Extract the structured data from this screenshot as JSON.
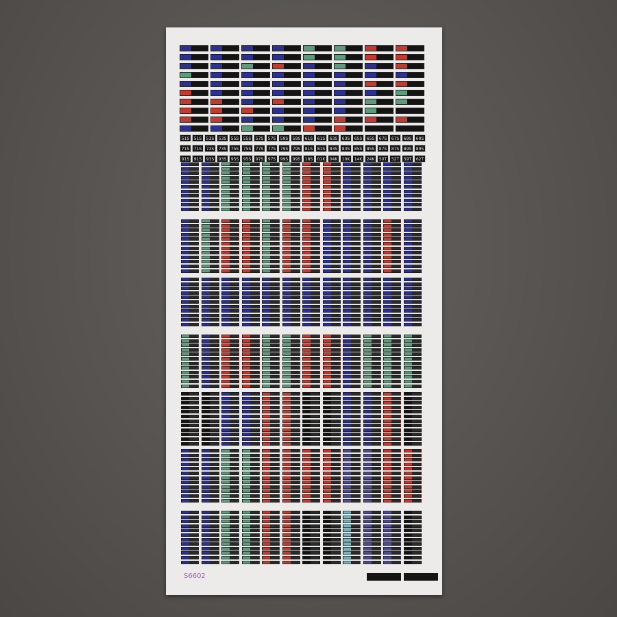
{
  "product_code": "S6602",
  "colors": {
    "B": "#2c318f",
    "G": "#5e9a7c",
    "R": "#c23b2e",
    "K": "#141414",
    "T": "#6fb6c2",
    "P": "#4d4a96",
    "O": "#b8563a",
    "V": "#6b5aa0"
  },
  "top_grid": [
    "BBBBGGRR",
    "BBBBGGRR",
    "BBGRBGBR",
    "GBBBBBBB",
    "BBBBBBRR",
    "RBBBBBBG",
    "RRBRBBGG",
    "RRRBBBGK",
    "RRBBBRRR",
    "BBGGRRKK"
  ],
  "number_rows": [
    [
      "51S",
      "51S",
      "53S",
      "53S",
      "55S",
      "55S",
      "57S",
      "57S",
      "59S",
      "59S",
      "61S",
      "61S",
      "63S",
      "63S",
      "65S",
      "65S",
      "67S",
      "67S",
      "69S",
      "69S"
    ],
    [
      "71S",
      "71S",
      "73S",
      "73S",
      "75S",
      "75S",
      "77S",
      "77S",
      "79S",
      "79S",
      "81S",
      "81S",
      "83S",
      "83S",
      "85S",
      "85S",
      "87S",
      "87S",
      "89S",
      "89S"
    ],
    [
      "91S",
      "91S",
      "93S",
      "93S",
      "95S",
      "95S",
      "97S",
      "97S",
      "99S",
      "99S",
      "18S",
      "01K",
      "04K",
      "10K",
      "14K",
      "24K",
      "50T",
      "52T",
      "59T",
      "62T"
    ]
  ],
  "stripe_sections": [
    "BBGGGGRRBBBB",
    "BGRRGRRBBBRB",
    "BBBBBBBBBBBB",
    "GBRRGGRRBGGG",
    "KKBBRRKKBBRK",
    "BBGGRRRRPPRR",
    "BBGGRRKKTPPK"
  ],
  "badges": [
    "",
    ""
  ]
}
